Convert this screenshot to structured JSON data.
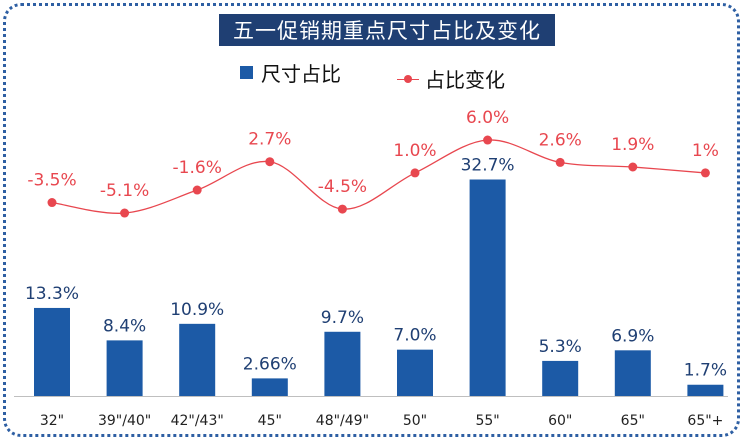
{
  "chart_data": {
    "type": "bar",
    "title": "五一促销期重点尺寸占比及变化",
    "categories": [
      "32\"",
      "39\"/40\"",
      "42\"/43\"",
      "45\"",
      "48\"/49\"",
      "50\"",
      "55\"",
      "60\"",
      "65\"",
      "65\"+"
    ],
    "series": [
      {
        "name": "尺寸占比",
        "kind": "bar",
        "values": [
          13.3,
          8.4,
          10.9,
          2.66,
          9.7,
          7.0,
          32.7,
          5.3,
          6.9,
          1.7
        ],
        "labels": [
          "13.3%",
          "8.4%",
          "10.9%",
          "2.66%",
          "9.7%",
          "7.0%",
          "32.7%",
          "5.3%",
          "6.9%",
          "1.7%"
        ],
        "color": "#1c5aa6"
      },
      {
        "name": "占比变化",
        "kind": "line",
        "values": [
          -3.5,
          -5.1,
          -1.6,
          2.7,
          -4.5,
          1.0,
          6.0,
          2.6,
          1.9,
          1
        ],
        "labels": [
          "-3.5%",
          "-5.1%",
          "-1.6%",
          "2.7%",
          "-4.5%",
          "1.0%",
          "6.0%",
          "2.6%",
          "1.9%",
          "1%"
        ],
        "color": "#e8474f"
      }
    ],
    "legend": "top-center",
    "grid": false
  }
}
